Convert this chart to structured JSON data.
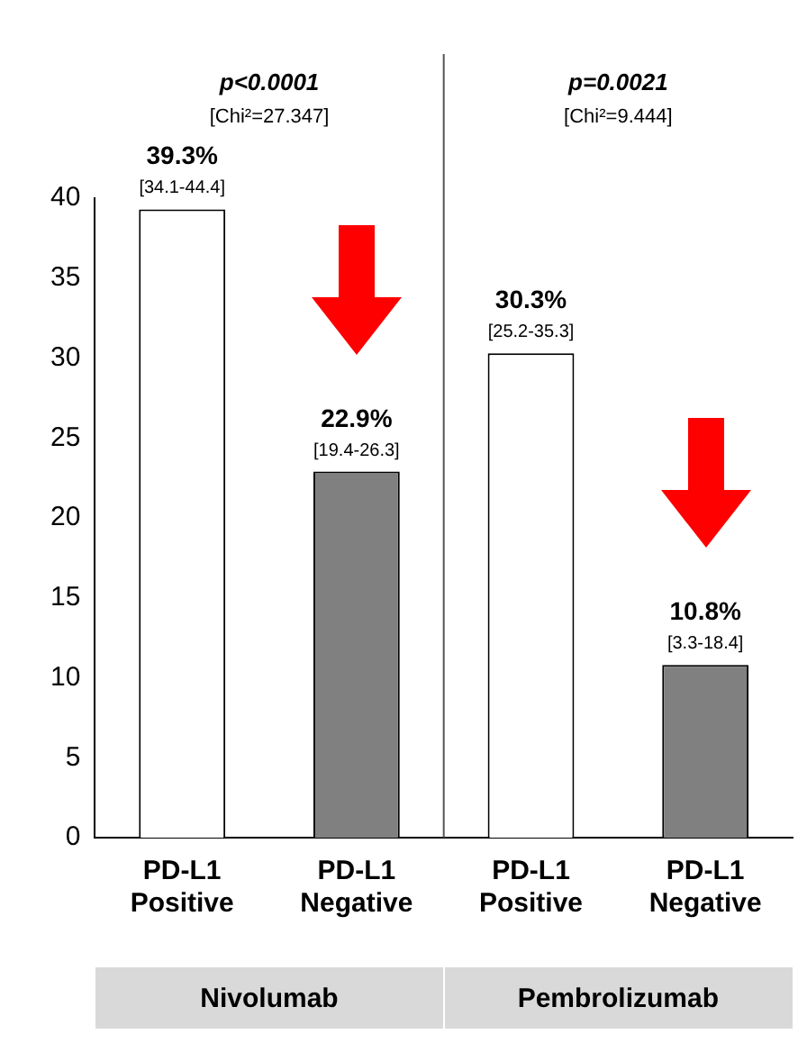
{
  "chart_data": {
    "type": "bar",
    "categories": [
      "PD-L1 Positive",
      "PD-L1 Negative",
      "PD-L1 Positive",
      "PD-L1 Negative"
    ],
    "values": [
      39.3,
      22.9,
      30.3,
      10.8
    ],
    "colors": [
      "#ffffff",
      "#808080",
      "#ffffff",
      "#808080"
    ],
    "value_labels": [
      "39.3%",
      "22.9%",
      "30.3%",
      "10.8%"
    ],
    "ylim": [
      0,
      40
    ],
    "yticks": [
      0,
      5,
      10,
      15,
      20,
      25,
      30,
      35,
      40
    ],
    "grid": false,
    "legend": false,
    "annotations": [
      "p<0.0001",
      "[Chi²=27.347]",
      "p=0.0021",
      "[Chi²=9.444]",
      "[34.1-44.4]",
      "[19.4-26.3]",
      "[25.2-35.3]",
      "[3.3-18.4]",
      "Nivolumab",
      "Pembrolizumab"
    ]
  }
}
